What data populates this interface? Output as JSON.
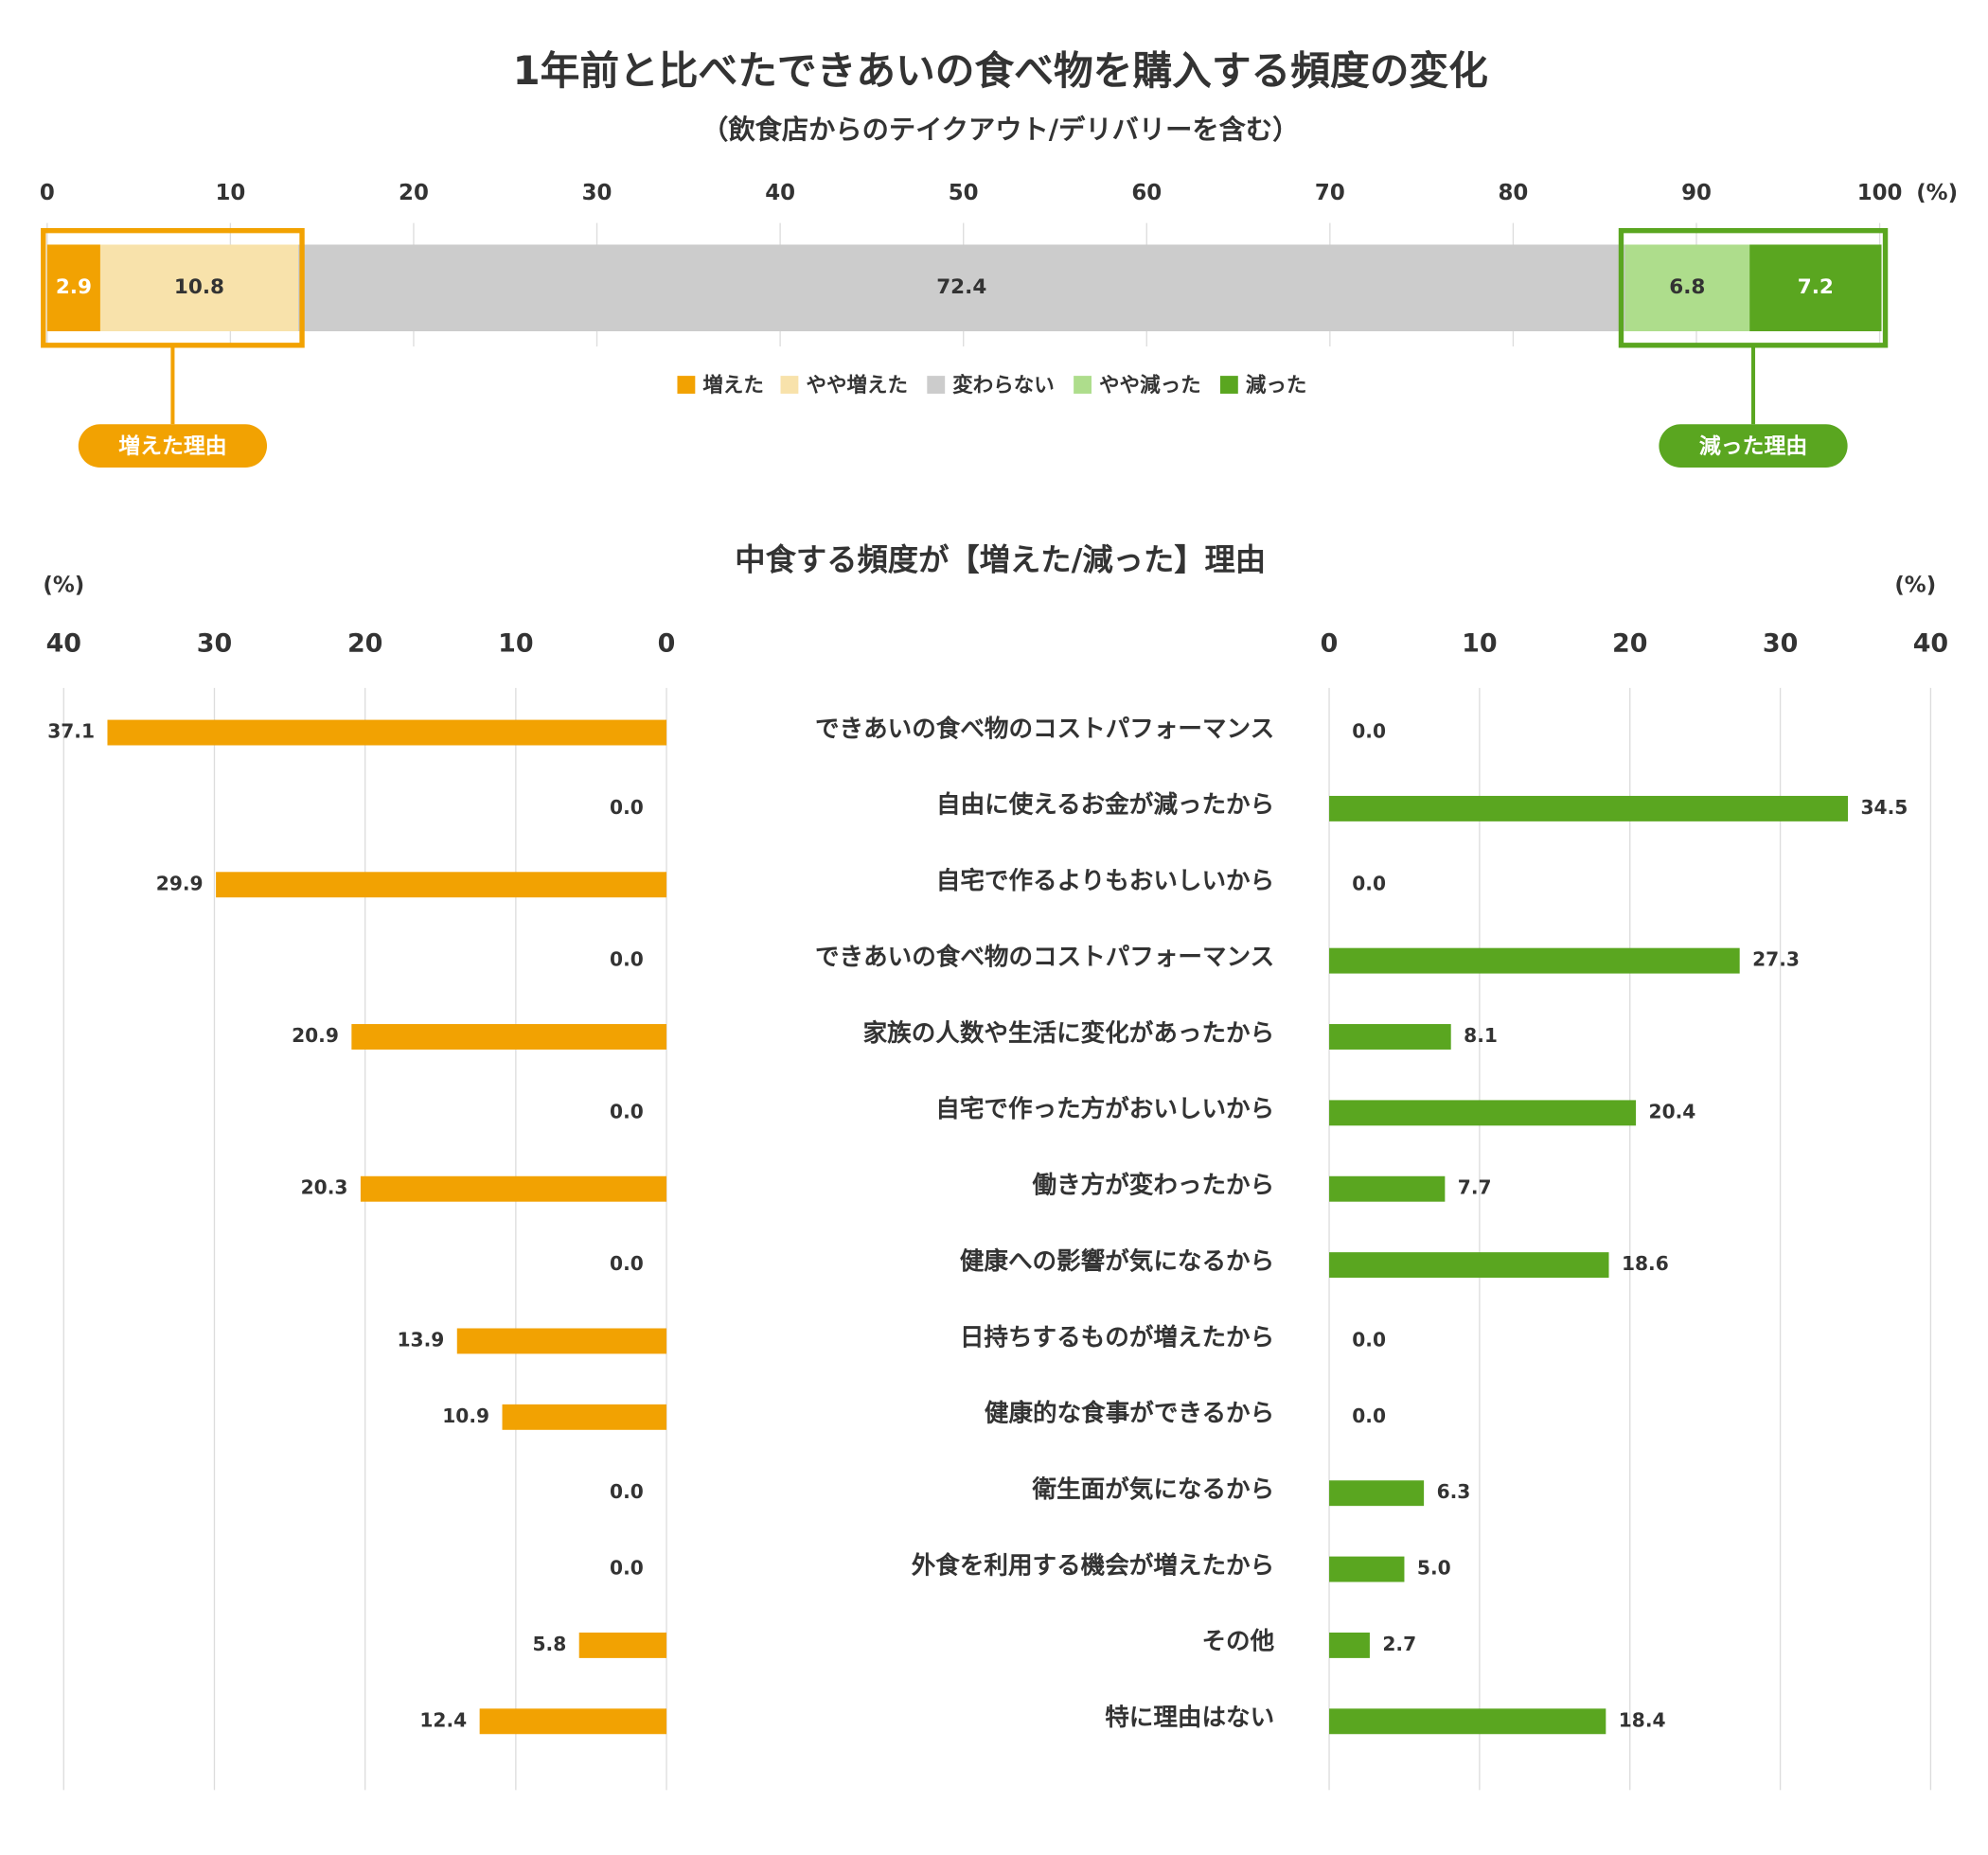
{
  "chart_data": [
    {
      "type": "stacked_bar",
      "title": "1年前と比べたできあいの食べ物を購入する頻度の変化",
      "subtitle": "（飲食店からのテイクアウト/デリバリーを含む）",
      "unit": "(%)",
      "xlim": [
        0,
        100
      ],
      "xticks": [
        0,
        10,
        20,
        30,
        40,
        50,
        60,
        70,
        80,
        90,
        100
      ],
      "grid": true,
      "series": [
        {
          "name": "増えた",
          "color": "#f2a202",
          "values": [
            2.9
          ]
        },
        {
          "name": "やや増えた",
          "color": "#f8e2ab",
          "values": [
            10.8
          ]
        },
        {
          "name": "変わらない",
          "color": "#cccccc",
          "values": [
            72.4
          ]
        },
        {
          "name": "やや減った",
          "color": "#aedd8c",
          "values": [
            6.8
          ]
        },
        {
          "name": "減った",
          "color": "#5aa620",
          "values": [
            7.2
          ]
        }
      ],
      "annotations": [
        {
          "text": "増えた理由",
          "color": "#f2a202"
        },
        {
          "text": "減った理由",
          "color": "#5aa620"
        }
      ]
    },
    {
      "type": "butterfly",
      "title": "中食する頻度が【増えた/減った】理由",
      "unit": "(%)",
      "xlim": [
        0,
        40
      ],
      "xticks": [
        0,
        10,
        20,
        30,
        40
      ],
      "grid": true,
      "categories": [
        "できあいの食べ物のコストパフォーマンス",
        "自由に使えるお金が減ったから",
        "自宅で作るよりもおいしいから",
        "できあいの食べ物のコストパフォーマンス",
        "家族の人数や生活に変化があったから",
        "自宅で作った方がおいしいから",
        "働き方が変わったから",
        "健康への影響が気になるから",
        "日持ちするものが増えたから",
        "健康的な食事ができるから",
        "衛生面が気になるから",
        "外食を利用する機会が増えたから",
        "その他",
        "特に理由はない"
      ],
      "series": [
        {
          "color": "#f2a202",
          "values": [
            37.1,
            0,
            29.9,
            0,
            20.9,
            0,
            20.3,
            0,
            13.9,
            10.9,
            0,
            0,
            5.8,
            12.4
          ],
          "value_labels": [
            "37.1",
            "0.0",
            "29.9",
            "0.0",
            "20.9",
            "0.0",
            "20.3",
            "0.0",
            "13.9",
            "10.9",
            "0.0",
            "0.0",
            "5.8",
            "12.4"
          ]
        },
        {
          "color": "#5aa620",
          "values": [
            0,
            34.5,
            0,
            27.3,
            8.1,
            20.4,
            7.7,
            18.6,
            0,
            0,
            6.3,
            5,
            2.7,
            18.4
          ],
          "value_labels": [
            "0.0",
            "34.5",
            "0.0",
            "27.3",
            "8.1",
            "20.4",
            "7.7",
            "18.6",
            "0.0",
            "0.0",
            "6.3",
            "5.0",
            "2.7",
            "18.4"
          ]
        }
      ]
    }
  ]
}
